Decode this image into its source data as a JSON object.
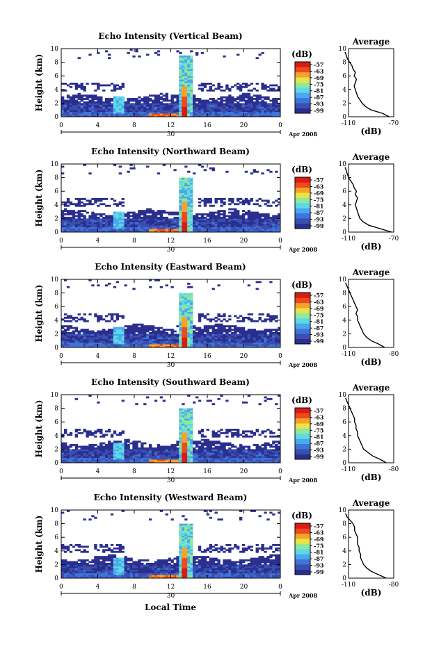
{
  "figure": {
    "xlabel_bottom": "Local Time",
    "date_day": "30",
    "date_label": "Apr 2008",
    "colorbar_unit": "(dB)",
    "colorbar_ticks": [
      "-57",
      "-63",
      "-69",
      "-75",
      "-81",
      "-87",
      "-93",
      "-99"
    ],
    "colorbar_colors": [
      "#2a2f8f",
      "#3a4fb0",
      "#3f74d8",
      "#49a8ee",
      "#5fd8e6",
      "#8fe89b",
      "#e7e44a",
      "#f5a32a",
      "#ef4a1f",
      "#d81c14"
    ],
    "profile_title": "Average",
    "profile_xlabel": "(dB)"
  },
  "chart_data": [
    {
      "type": "heatmap",
      "title": "Echo Intensity (Vertical Beam)",
      "ylabel": "Height (km)",
      "xlim": [
        0,
        24
      ],
      "ylim": [
        0,
        10
      ],
      "xticks": [
        "0",
        "4",
        "8",
        "12",
        "16",
        "20",
        "0"
      ],
      "yticks": [
        "0",
        "2",
        "4",
        "6",
        "8",
        "10"
      ],
      "color_range_db": [
        -99,
        -57
      ],
      "profile": {
        "title": "Average",
        "xlabel": "(dB)",
        "xlim": [
          -110,
          -70
        ],
        "xticks": [
          "-110",
          "-70"
        ],
        "height_km": [
          0,
          0.5,
          1,
          1.5,
          2,
          2.5,
          3,
          3.5,
          4,
          4.5,
          5,
          5.5,
          6,
          6.5,
          7,
          7.5,
          8,
          8.5,
          9,
          9.5
        ],
        "db": [
          -74,
          -80,
          -90,
          -95,
          -98,
          -100,
          -102,
          -103,
          -104,
          -105,
          -104,
          -103,
          -105,
          -104,
          -106,
          -107,
          -109,
          -111,
          -112,
          -113
        ]
      }
    },
    {
      "type": "heatmap",
      "title": "Echo Intensity (Northward Beam)",
      "ylabel": "Height (km)",
      "xlim": [
        0,
        24
      ],
      "ylim": [
        0,
        10
      ],
      "xticks": [
        "0",
        "4",
        "8",
        "12",
        "16",
        "20",
        "0"
      ],
      "yticks": [
        "0",
        "2",
        "4",
        "6",
        "8",
        "10"
      ],
      "color_range_db": [
        -99,
        -57
      ],
      "profile": {
        "title": "Average",
        "xlabel": "(dB)",
        "xlim": [
          -110,
          -70
        ],
        "xticks": [
          "-110",
          "-70"
        ],
        "height_km": [
          0,
          0.5,
          1,
          1.5,
          2,
          2.5,
          3,
          3.5,
          4,
          4.5,
          5,
          5.5,
          6,
          6.5,
          7,
          7.5,
          8,
          8.5,
          9,
          9.5
        ],
        "db": [
          -72,
          -82,
          -92,
          -97,
          -100,
          -101,
          -102,
          -103,
          -104,
          -103,
          -102,
          -104,
          -103,
          -105,
          -106,
          -108,
          -110,
          -111,
          -112,
          -113
        ]
      }
    },
    {
      "type": "heatmap",
      "title": "Echo Intensity (Eastward Beam)",
      "ylabel": "Height (km)",
      "xlim": [
        0,
        24
      ],
      "ylim": [
        0,
        10
      ],
      "xticks": [
        "0",
        "4",
        "8",
        "12",
        "16",
        "20",
        "0"
      ],
      "yticks": [
        "0",
        "2",
        "4",
        "6",
        "8",
        "10"
      ],
      "color_range_db": [
        -99,
        -57
      ],
      "profile": {
        "title": "Average",
        "xlabel": "(dB)",
        "xlim": [
          -110,
          -80
        ],
        "xticks": [
          "-110",
          "-80"
        ],
        "height_km": [
          0,
          0.5,
          1,
          1.5,
          2,
          2.5,
          3,
          3.5,
          4,
          4.5,
          5,
          5.5,
          6,
          6.5,
          7,
          7.5,
          8,
          8.5,
          9,
          9.5
        ],
        "db": [
          -86,
          -90,
          -95,
          -98,
          -100,
          -101,
          -102,
          -103,
          -104,
          -104,
          -105,
          -104,
          -105,
          -106,
          -107,
          -108,
          -109,
          -110,
          -111,
          -112
        ]
      }
    },
    {
      "type": "heatmap",
      "title": "Echo Intensity (Southward Beam)",
      "ylabel": "Height (km)",
      "xlim": [
        0,
        24
      ],
      "ylim": [
        0,
        10
      ],
      "xticks": [
        "0",
        "4",
        "8",
        "12",
        "16",
        "20",
        "0"
      ],
      "yticks": [
        "0",
        "2",
        "4",
        "6",
        "8",
        "10"
      ],
      "color_range_db": [
        -99,
        -57
      ],
      "profile": {
        "title": "Average",
        "xlabel": "(dB)",
        "xlim": [
          -110,
          -80
        ],
        "xticks": [
          "-110",
          "-80"
        ],
        "height_km": [
          0,
          0.5,
          1,
          1.5,
          2,
          2.5,
          3,
          3.5,
          4,
          4.5,
          5,
          5.5,
          6,
          6.5,
          7,
          7.5,
          8,
          8.5,
          9,
          9.5
        ],
        "db": [
          -85,
          -89,
          -94,
          -97,
          -100,
          -101,
          -102,
          -103,
          -104,
          -104,
          -105,
          -105,
          -106,
          -106,
          -107,
          -108,
          -109,
          -110,
          -111,
          -112
        ]
      }
    },
    {
      "type": "heatmap",
      "title": "Echo Intensity (Westward Beam)",
      "ylabel": "Height (km)",
      "xlim": [
        0,
        24
      ],
      "ylim": [
        0,
        10
      ],
      "xticks": [
        "0",
        "4",
        "8",
        "12",
        "16",
        "20",
        "0"
      ],
      "yticks": [
        "0",
        "2",
        "4",
        "6",
        "8",
        "10"
      ],
      "color_range_db": [
        -99,
        -57
      ],
      "profile": {
        "title": "Average",
        "xlabel": "(dB)",
        "xlim": [
          -110,
          -80
        ],
        "xticks": [
          "-110",
          "-80"
        ],
        "height_km": [
          0,
          0.5,
          1,
          1.5,
          2,
          2.5,
          3,
          3.5,
          4,
          4.5,
          5,
          5.5,
          6,
          6.5,
          7,
          7.5,
          8,
          8.5,
          9,
          9.5
        ],
        "db": [
          -85,
          -90,
          -95,
          -98,
          -100,
          -101,
          -102,
          -102,
          -103,
          -103,
          -104,
          -104,
          -104,
          -105,
          -106,
          -106,
          -107,
          -109,
          -111,
          -112
        ]
      }
    }
  ]
}
